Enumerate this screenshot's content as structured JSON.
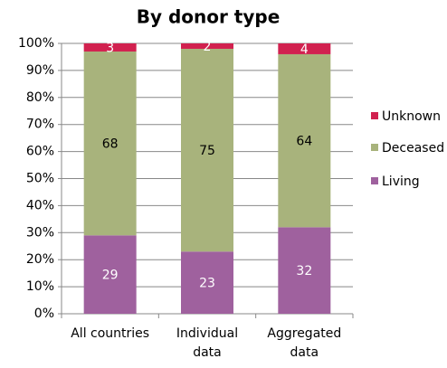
{
  "chart_data": {
    "type": "stacked_bar",
    "title": "By donor type",
    "categories": [
      "All countries",
      "Individual data",
      "Aggregated data"
    ],
    "series": [
      {
        "name": "Living",
        "color": "#9f619e",
        "values": [
          29,
          23,
          32
        ]
      },
      {
        "name": "Deceased",
        "color": "#a8b37c",
        "values": [
          68,
          75,
          64
        ]
      },
      {
        "name": "Unknown",
        "color": "#d1214f",
        "values": [
          3,
          2,
          4
        ]
      }
    ],
    "ylim": [
      0,
      100
    ],
    "yticks": [
      {
        "value": 0,
        "label": "0%"
      },
      {
        "value": 10,
        "label": "10%"
      },
      {
        "value": 20,
        "label": "20%"
      },
      {
        "value": 30,
        "label": "30%"
      },
      {
        "value": 40,
        "label": "40%"
      },
      {
        "value": 50,
        "label": "50%"
      },
      {
        "value": 60,
        "label": "60%"
      },
      {
        "value": 70,
        "label": "70%"
      },
      {
        "value": 80,
        "label": "80%"
      },
      {
        "value": 90,
        "label": "90%"
      },
      {
        "value": 100,
        "label": "100%"
      }
    ],
    "grid": true,
    "legend": "right"
  }
}
